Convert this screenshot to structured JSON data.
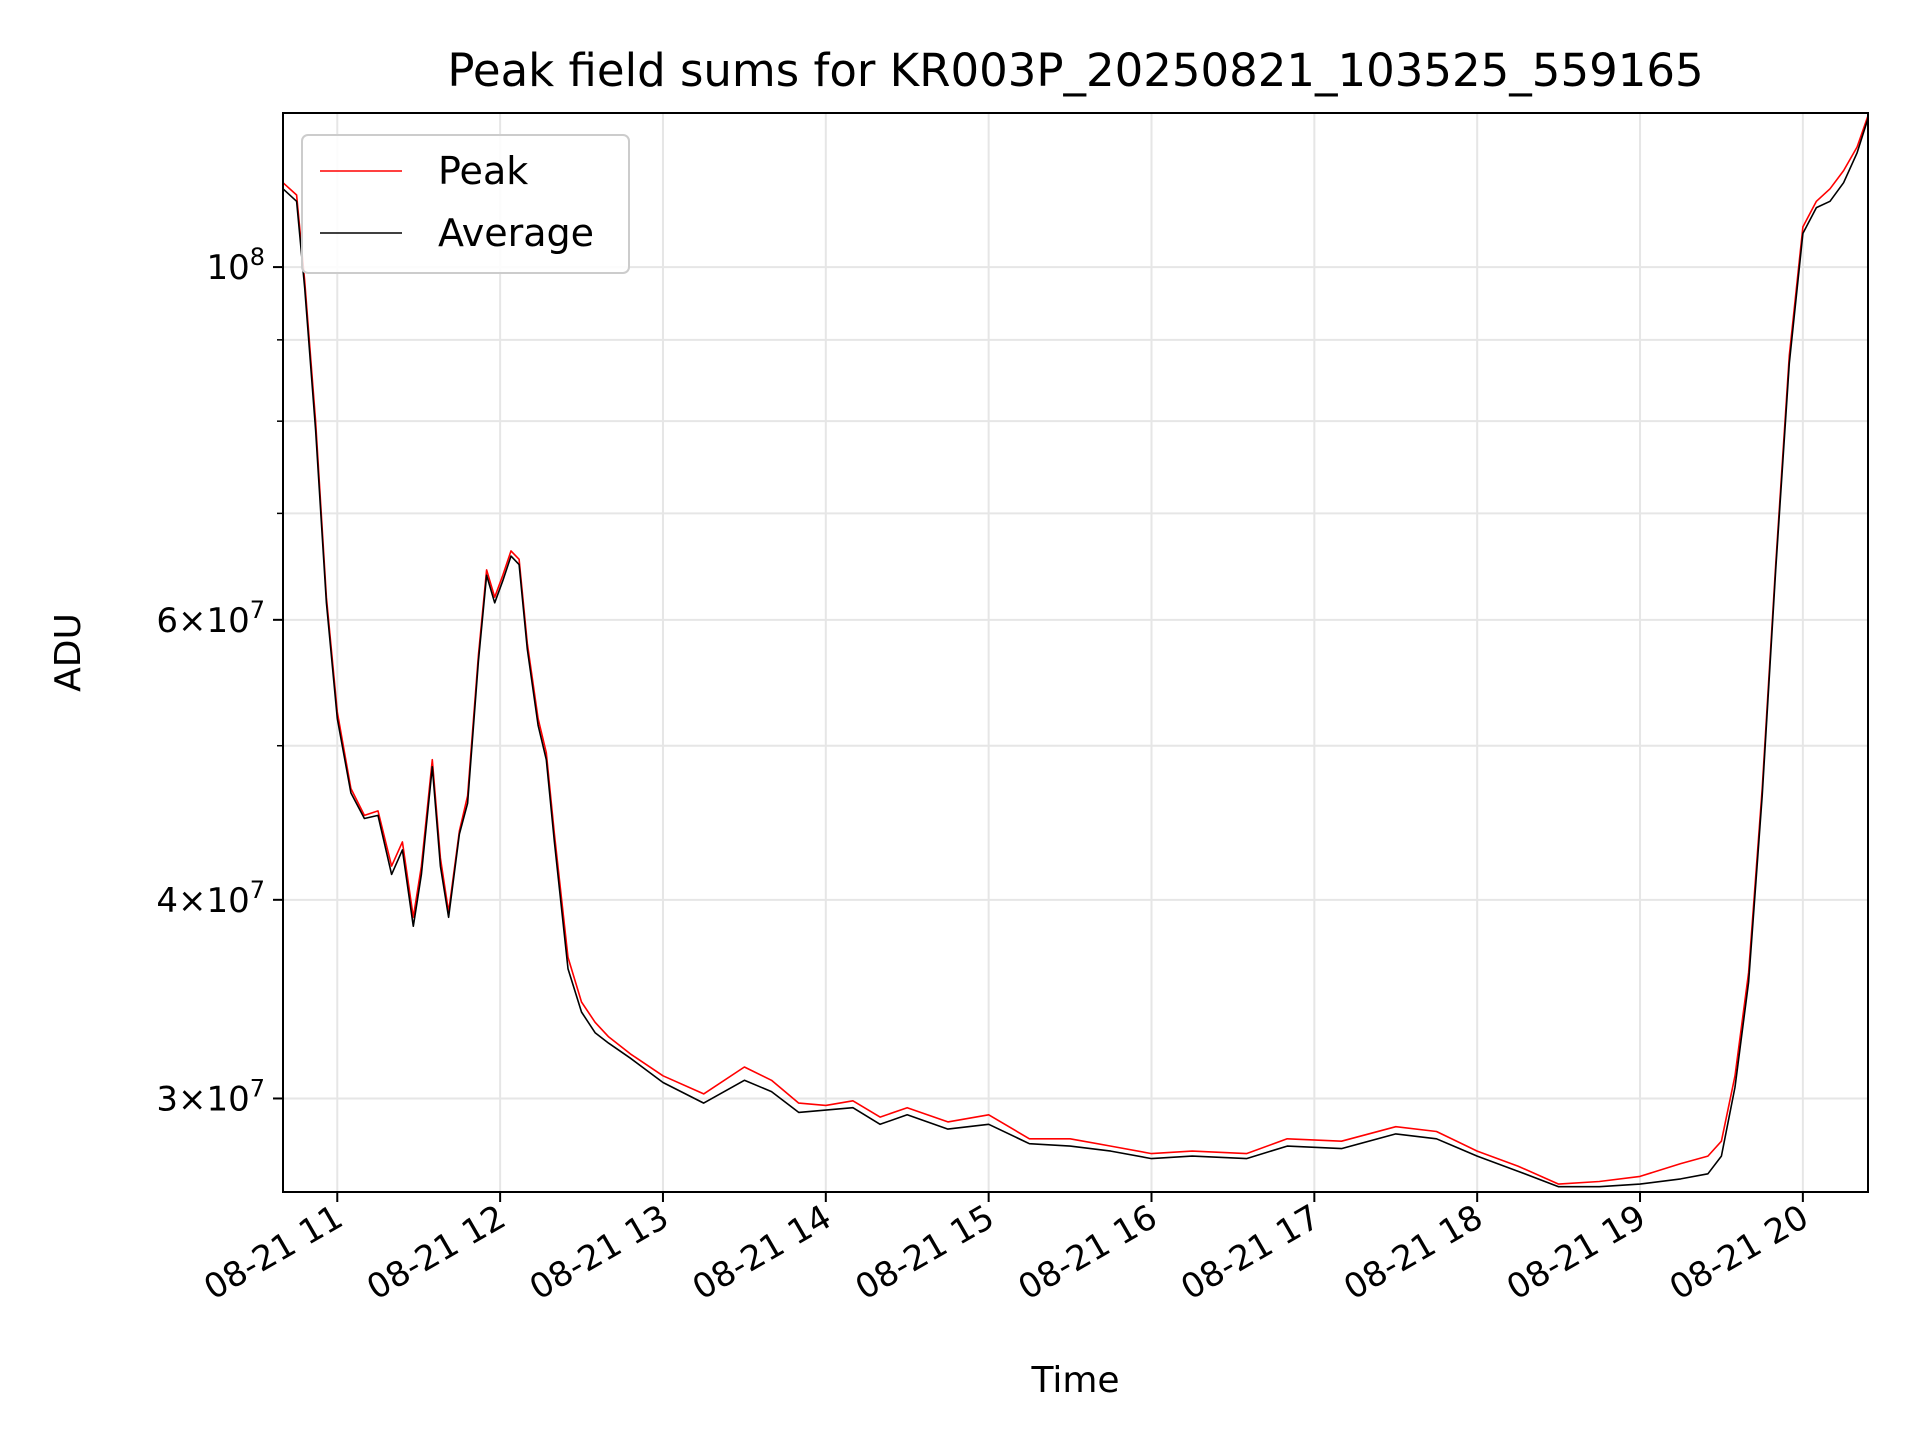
{
  "chart_data": {
    "type": "line",
    "title": "Peak field sums for KR003P_20250821_103525_559165",
    "xlabel": "Time",
    "ylabel": "ADU",
    "y_scale": "log",
    "ylim": [
      26200000,
      125000000
    ],
    "xlim": [
      "2025-08-21 10:40",
      "2025-08-21 20:24"
    ],
    "x_tick_labels": [
      "08-21 11",
      "08-21 12",
      "08-21 13",
      "08-21 14",
      "08-21 15",
      "08-21 16",
      "08-21 17",
      "08-21 18",
      "08-21 19",
      "08-21 20"
    ],
    "x_ticks": [
      "2025-08-21 11:00",
      "2025-08-21 12:00",
      "2025-08-21 13:00",
      "2025-08-21 14:00",
      "2025-08-21 15:00",
      "2025-08-21 16:00",
      "2025-08-21 17:00",
      "2025-08-21 18:00",
      "2025-08-21 19:00",
      "2025-08-21 20:00"
    ],
    "y_ticks": [
      {
        "value": 100000000,
        "mantissa": "",
        "base": "10",
        "exp": "8"
      },
      {
        "value": 60000000,
        "mantissa": "6×",
        "base": "10",
        "exp": "7"
      },
      {
        "value": 40000000,
        "mantissa": "4×",
        "base": "10",
        "exp": "7"
      },
      {
        "value": 30000000,
        "mantissa": "3×",
        "base": "10",
        "exp": "7"
      }
    ],
    "y_minor_ticks": [
      90000000,
      80000000,
      70000000,
      50000000
    ],
    "grid": true,
    "legend_position": "upper-left",
    "series": [
      {
        "name": "Peak",
        "color": "#ff0000",
        "x": [
          "2025-08-21 10:40",
          "2025-08-21 10:45",
          "2025-08-21 10:48",
          "2025-08-21 10:52",
          "2025-08-21 10:56",
          "2025-08-21 11:00",
          "2025-08-21 11:05",
          "2025-08-21 11:10",
          "2025-08-21 11:15",
          "2025-08-21 11:20",
          "2025-08-21 11:24",
          "2025-08-21 11:28",
          "2025-08-21 11:31",
          "2025-08-21 11:35",
          "2025-08-21 11:38",
          "2025-08-21 11:41",
          "2025-08-21 11:45",
          "2025-08-21 11:48",
          "2025-08-21 11:52",
          "2025-08-21 11:55",
          "2025-08-21 11:58",
          "2025-08-21 12:01",
          "2025-08-21 12:04",
          "2025-08-21 12:07",
          "2025-08-21 12:10",
          "2025-08-21 12:14",
          "2025-08-21 12:17",
          "2025-08-21 12:20",
          "2025-08-21 12:25",
          "2025-08-21 12:30",
          "2025-08-21 12:35",
          "2025-08-21 12:40",
          "2025-08-21 12:48",
          "2025-08-21 13:00",
          "2025-08-21 13:15",
          "2025-08-21 13:30",
          "2025-08-21 13:40",
          "2025-08-21 13:50",
          "2025-08-21 14:00",
          "2025-08-21 14:10",
          "2025-08-21 14:20",
          "2025-08-21 14:30",
          "2025-08-21 14:45",
          "2025-08-21 15:00",
          "2025-08-21 15:15",
          "2025-08-21 15:30",
          "2025-08-21 15:45",
          "2025-08-21 16:00",
          "2025-08-21 16:15",
          "2025-08-21 16:35",
          "2025-08-21 16:50",
          "2025-08-21 17:10",
          "2025-08-21 17:30",
          "2025-08-21 17:45",
          "2025-08-21 18:00",
          "2025-08-21 18:15",
          "2025-08-21 18:30",
          "2025-08-21 18:45",
          "2025-08-21 19:00",
          "2025-08-21 19:15",
          "2025-08-21 19:25",
          "2025-08-21 19:30",
          "2025-08-21 19:35",
          "2025-08-21 19:40",
          "2025-08-21 19:45",
          "2025-08-21 19:50",
          "2025-08-21 19:55",
          "2025-08-21 20:00",
          "2025-08-21 20:05",
          "2025-08-21 20:10",
          "2025-08-21 20:15",
          "2025-08-21 20:20",
          "2025-08-21 20:24"
        ],
        "values": [
          113000000,
          111000000,
          98000000,
          80000000,
          62000000,
          52500000,
          47000000,
          45200000,
          45500000,
          42000000,
          43500000,
          39000000,
          42000000,
          49000000,
          42500000,
          39300000,
          44200000,
          46500000,
          57000000,
          64500000,
          62000000,
          64000000,
          66300000,
          65500000,
          58000000,
          52000000,
          49500000,
          44000000,
          36800000,
          34500000,
          33500000,
          32800000,
          32000000,
          31000000,
          30200000,
          31400000,
          30800000,
          29800000,
          29700000,
          29900000,
          29200000,
          29600000,
          29000000,
          29300000,
          28300000,
          28300000,
          28000000,
          27700000,
          27800000,
          27700000,
          28300000,
          28200000,
          28800000,
          28600000,
          27800000,
          27200000,
          26500000,
          26600000,
          26800000,
          27300000,
          27600000,
          28200000,
          31000000,
          36000000,
          47000000,
          65000000,
          88000000,
          106000000,
          110000000,
          112000000,
          115000000,
          119000000,
          124500000
        ]
      },
      {
        "name": "Average",
        "color": "#000000",
        "x": [
          "2025-08-21 10:40",
          "2025-08-21 10:45",
          "2025-08-21 10:48",
          "2025-08-21 10:52",
          "2025-08-21 10:56",
          "2025-08-21 11:00",
          "2025-08-21 11:05",
          "2025-08-21 11:10",
          "2025-08-21 11:15",
          "2025-08-21 11:20",
          "2025-08-21 11:24",
          "2025-08-21 11:28",
          "2025-08-21 11:31",
          "2025-08-21 11:35",
          "2025-08-21 11:38",
          "2025-08-21 11:41",
          "2025-08-21 11:45",
          "2025-08-21 11:48",
          "2025-08-21 11:52",
          "2025-08-21 11:55",
          "2025-08-21 11:58",
          "2025-08-21 12:01",
          "2025-08-21 12:04",
          "2025-08-21 12:07",
          "2025-08-21 12:10",
          "2025-08-21 12:14",
          "2025-08-21 12:17",
          "2025-08-21 12:20",
          "2025-08-21 12:25",
          "2025-08-21 12:30",
          "2025-08-21 12:35",
          "2025-08-21 12:40",
          "2025-08-21 12:48",
          "2025-08-21 13:00",
          "2025-08-21 13:15",
          "2025-08-21 13:30",
          "2025-08-21 13:40",
          "2025-08-21 13:50",
          "2025-08-21 14:00",
          "2025-08-21 14:10",
          "2025-08-21 14:20",
          "2025-08-21 14:30",
          "2025-08-21 14:45",
          "2025-08-21 15:00",
          "2025-08-21 15:15",
          "2025-08-21 15:30",
          "2025-08-21 15:45",
          "2025-08-21 16:00",
          "2025-08-21 16:15",
          "2025-08-21 16:35",
          "2025-08-21 16:50",
          "2025-08-21 17:10",
          "2025-08-21 17:30",
          "2025-08-21 17:45",
          "2025-08-21 18:00",
          "2025-08-21 18:15",
          "2025-08-21 18:30",
          "2025-08-21 18:45",
          "2025-08-21 19:00",
          "2025-08-21 19:15",
          "2025-08-21 19:25",
          "2025-08-21 19:30",
          "2025-08-21 19:35",
          "2025-08-21 19:40",
          "2025-08-21 19:45",
          "2025-08-21 19:50",
          "2025-08-21 19:55",
          "2025-08-21 20:00",
          "2025-08-21 20:05",
          "2025-08-21 20:10",
          "2025-08-21 20:15",
          "2025-08-21 20:20",
          "2025-08-21 20:24"
        ],
        "values": [
          112000000,
          110000000,
          97000000,
          79000000,
          61500000,
          52000000,
          46700000,
          45000000,
          45200000,
          41500000,
          43000000,
          38500000,
          41500000,
          48500000,
          42000000,
          39000000,
          44000000,
          46000000,
          56500000,
          64000000,
          61500000,
          63500000,
          65800000,
          65000000,
          57500000,
          51500000,
          49000000,
          43500000,
          36200000,
          34000000,
          33000000,
          32500000,
          31800000,
          30700000,
          29800000,
          30800000,
          30300000,
          29400000,
          29500000,
          29600000,
          28900000,
          29300000,
          28700000,
          28900000,
          28100000,
          28000000,
          27800000,
          27500000,
          27600000,
          27500000,
          28000000,
          27900000,
          28500000,
          28300000,
          27600000,
          27000000,
          26400000,
          26400000,
          26500000,
          26700000,
          26900000,
          27600000,
          30500000,
          35500000,
          46500000,
          64500000,
          87000000,
          105000000,
          109000000,
          110000000,
          113000000,
          118000000,
          124000000
        ]
      }
    ]
  }
}
